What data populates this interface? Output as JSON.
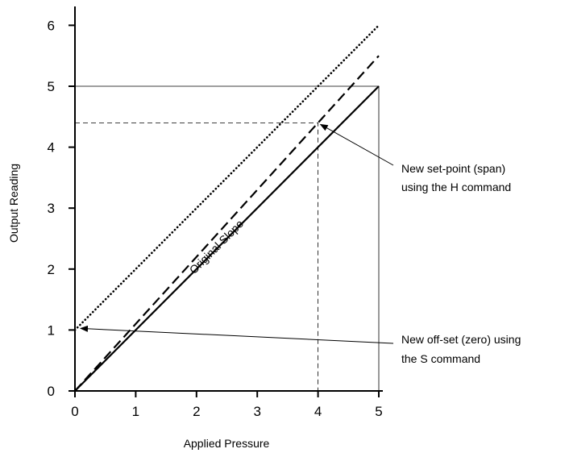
{
  "chart_data": {
    "type": "line",
    "title": "",
    "xlabel": "Applied Pressure",
    "ylabel": "Output Reading",
    "xlim": [
      0,
      5
    ],
    "ylim": [
      0,
      6
    ],
    "x_ticks": [
      0,
      1,
      2,
      3,
      4,
      5
    ],
    "y_ticks": [
      0,
      1,
      2,
      3,
      4,
      5,
      6
    ],
    "x_tick_labels": [
      "0",
      "1",
      "2",
      "3",
      "4",
      "5"
    ],
    "y_tick_labels": [
      "0",
      "1",
      "2",
      "3",
      "4",
      "5",
      "6"
    ],
    "grid": false,
    "series": [
      {
        "name": "Original Slope",
        "style": "solid",
        "x": [
          0,
          5
        ],
        "y": [
          0,
          5
        ]
      },
      {
        "style": "dashed",
        "x": [
          0,
          5
        ],
        "y": [
          0,
          5.5
        ]
      },
      {
        "style": "dotted",
        "x": [
          0,
          5
        ],
        "y": [
          1,
          6
        ]
      }
    ],
    "reference_lines": [
      {
        "style": "thin-solid",
        "x": [
          0,
          5,
          5
        ],
        "y": [
          5,
          5,
          0
        ]
      },
      {
        "style": "thin-dashed",
        "x": [
          0,
          4,
          4
        ],
        "y": [
          4.4,
          4.4,
          0
        ]
      }
    ],
    "annotations": [
      {
        "lines": [
          "New set-point (span)",
          "using the H command"
        ],
        "target": {
          "x": 4,
          "y": 4.4
        }
      },
      {
        "lines": [
          "New off-set (zero) using",
          "the S command"
        ],
        "target": {
          "x": 0,
          "y": 1
        }
      }
    ],
    "line_label": {
      "text": "Original Slope",
      "at": {
        "x": 2.2,
        "y": 2.2
      }
    }
  }
}
